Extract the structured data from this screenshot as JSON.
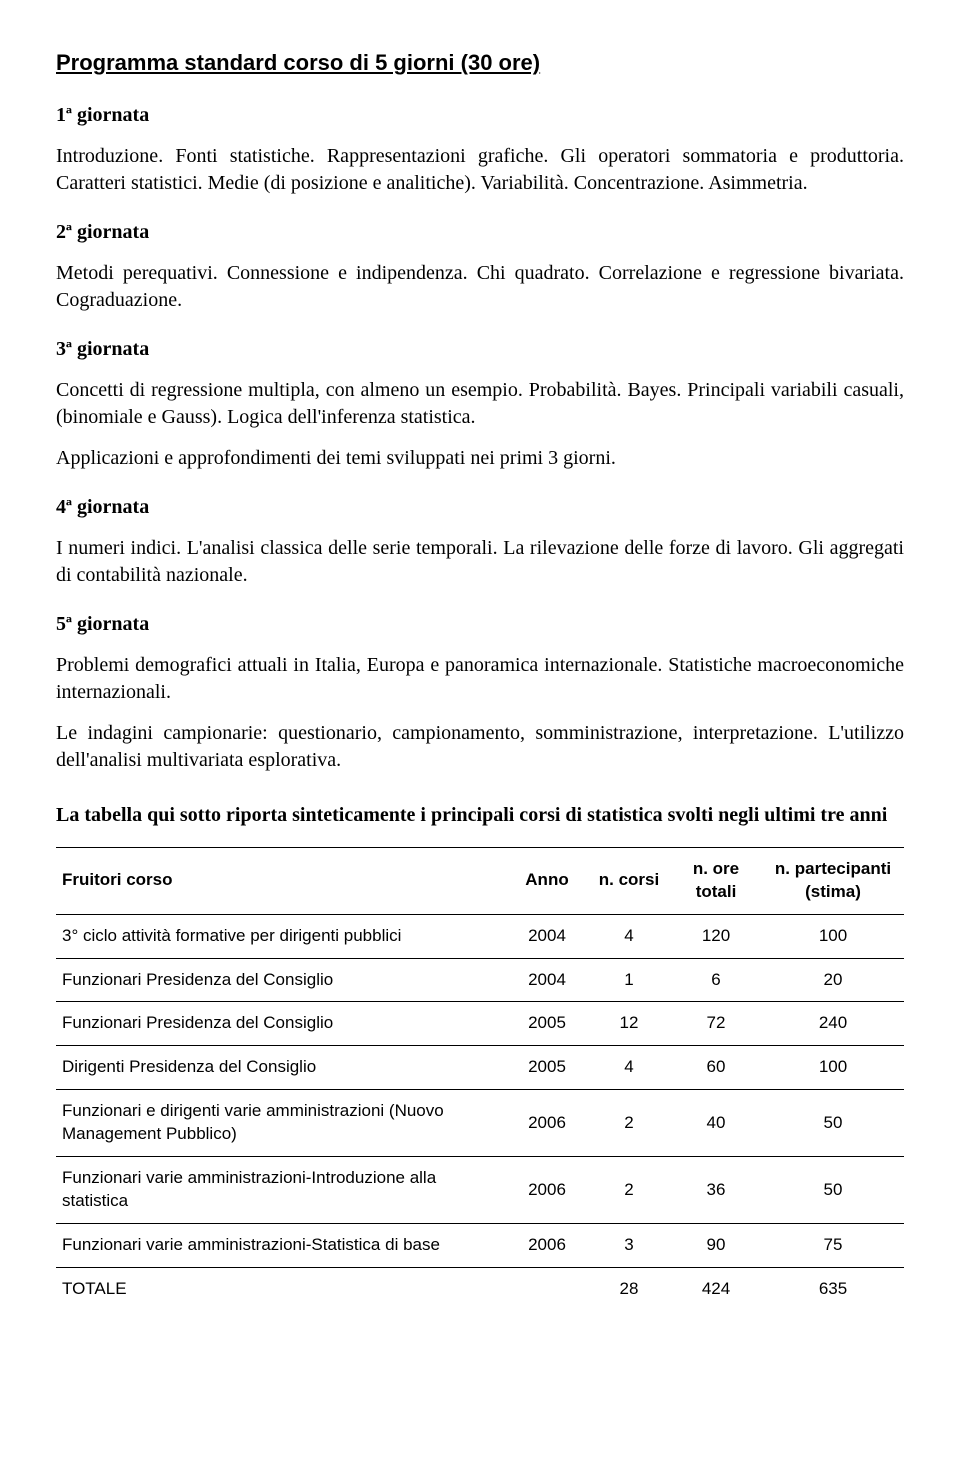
{
  "title": "Programma standard corso di 5 giorni (30 ore)",
  "days": [
    {
      "heading": "1ª giornata",
      "text": "Introduzione. Fonti statistiche. Rappresentazioni grafiche. Gli operatori sommatoria e produttoria. Caratteri statistici. Medie (di posizione e analitiche). Variabilità. Concentrazione. Asimmetria."
    },
    {
      "heading": "2ª giornata",
      "text": "Metodi perequativi. Connessione e indipendenza. Chi quadrato. Correlazione e regressione bivariata. Cograduazione."
    },
    {
      "heading": "3ª giornata",
      "text": "Concetti di regressione multipla, con almeno un esempio. Probabilità. Bayes. Principali variabili casuali, (binomiale e Gauss). Logica dell'inferenza statistica.",
      "text2": "Applicazioni e approfondimenti dei temi sviluppati nei primi 3 giorni."
    },
    {
      "heading": "4ª giornata",
      "text": "I numeri indici. L'analisi classica delle serie temporali. La rilevazione delle forze di lavoro. Gli aggregati di contabilità nazionale."
    },
    {
      "heading": "5ª giornata",
      "text": "Problemi demografici attuali in Italia, Europa e panoramica internazionale. Statistiche macroeconomiche internazionali.",
      "text2": "Le indagini campionarie: questionario, campionamento, somministrazione, interpretazione. L'utilizzo dell'analisi multivariata esplorativa."
    }
  ],
  "table_intro": "La tabella qui sotto riporta sinteticamente i principali corsi di statistica svolti negli ultimi tre anni",
  "table": {
    "headers": {
      "h0": "Fruitori corso",
      "h1": "Anno",
      "h2": "n. corsi",
      "h3": "n. ore totali",
      "h4": "n. partecipanti (stima)"
    },
    "rows": [
      {
        "label": "3° ciclo attività formative per dirigenti pubblici",
        "anno": "2004",
        "ncorsi": "4",
        "ore": "120",
        "part": "100"
      },
      {
        "label": "Funzionari Presidenza del Consiglio",
        "anno": "2004",
        "ncorsi": "1",
        "ore": "6",
        "part": "20"
      },
      {
        "label": "Funzionari Presidenza del Consiglio",
        "anno": "2005",
        "ncorsi": "12",
        "ore": "72",
        "part": "240"
      },
      {
        "label": "Dirigenti Presidenza del Consiglio",
        "anno": "2005",
        "ncorsi": "4",
        "ore": "60",
        "part": "100"
      },
      {
        "label": "Funzionari e dirigenti varie amministrazioni (Nuovo Management Pubblico)",
        "anno": "2006",
        "ncorsi": "2",
        "ore": "40",
        "part": "50"
      },
      {
        "label": "Funzionari varie amministrazioni-Introduzione alla statistica",
        "anno": "2006",
        "ncorsi": "2",
        "ore": "36",
        "part": "50"
      },
      {
        "label": "Funzionari varie amministrazioni-Statistica di base",
        "anno": "2006",
        "ncorsi": "3",
        "ore": "90",
        "part": "75"
      }
    ],
    "total": {
      "label": "TOTALE",
      "anno": "",
      "ncorsi": "28",
      "ore": "424",
      "part": "635"
    }
  }
}
